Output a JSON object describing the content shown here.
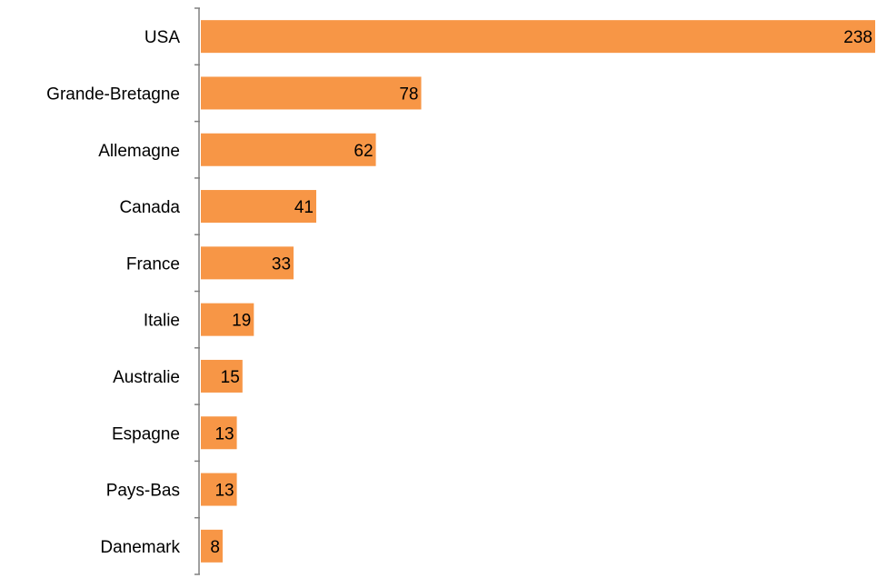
{
  "chart_data": {
    "type": "bar",
    "orientation": "horizontal",
    "categories": [
      "USA",
      "Grande-Bretagne",
      "Allemagne",
      "Canada",
      "France",
      "Italie",
      "Australie",
      "Espagne",
      "Pays-Bas",
      "Danemark"
    ],
    "values": [
      238,
      78,
      62,
      41,
      33,
      19,
      15,
      13,
      13,
      8
    ],
    "title": "",
    "xlabel": "",
    "ylabel": "",
    "xlim": [
      0,
      238
    ],
    "grid": false,
    "legend": "none",
    "bar_color": "#f79646",
    "axis_color": "#808080",
    "data_labels": true
  }
}
